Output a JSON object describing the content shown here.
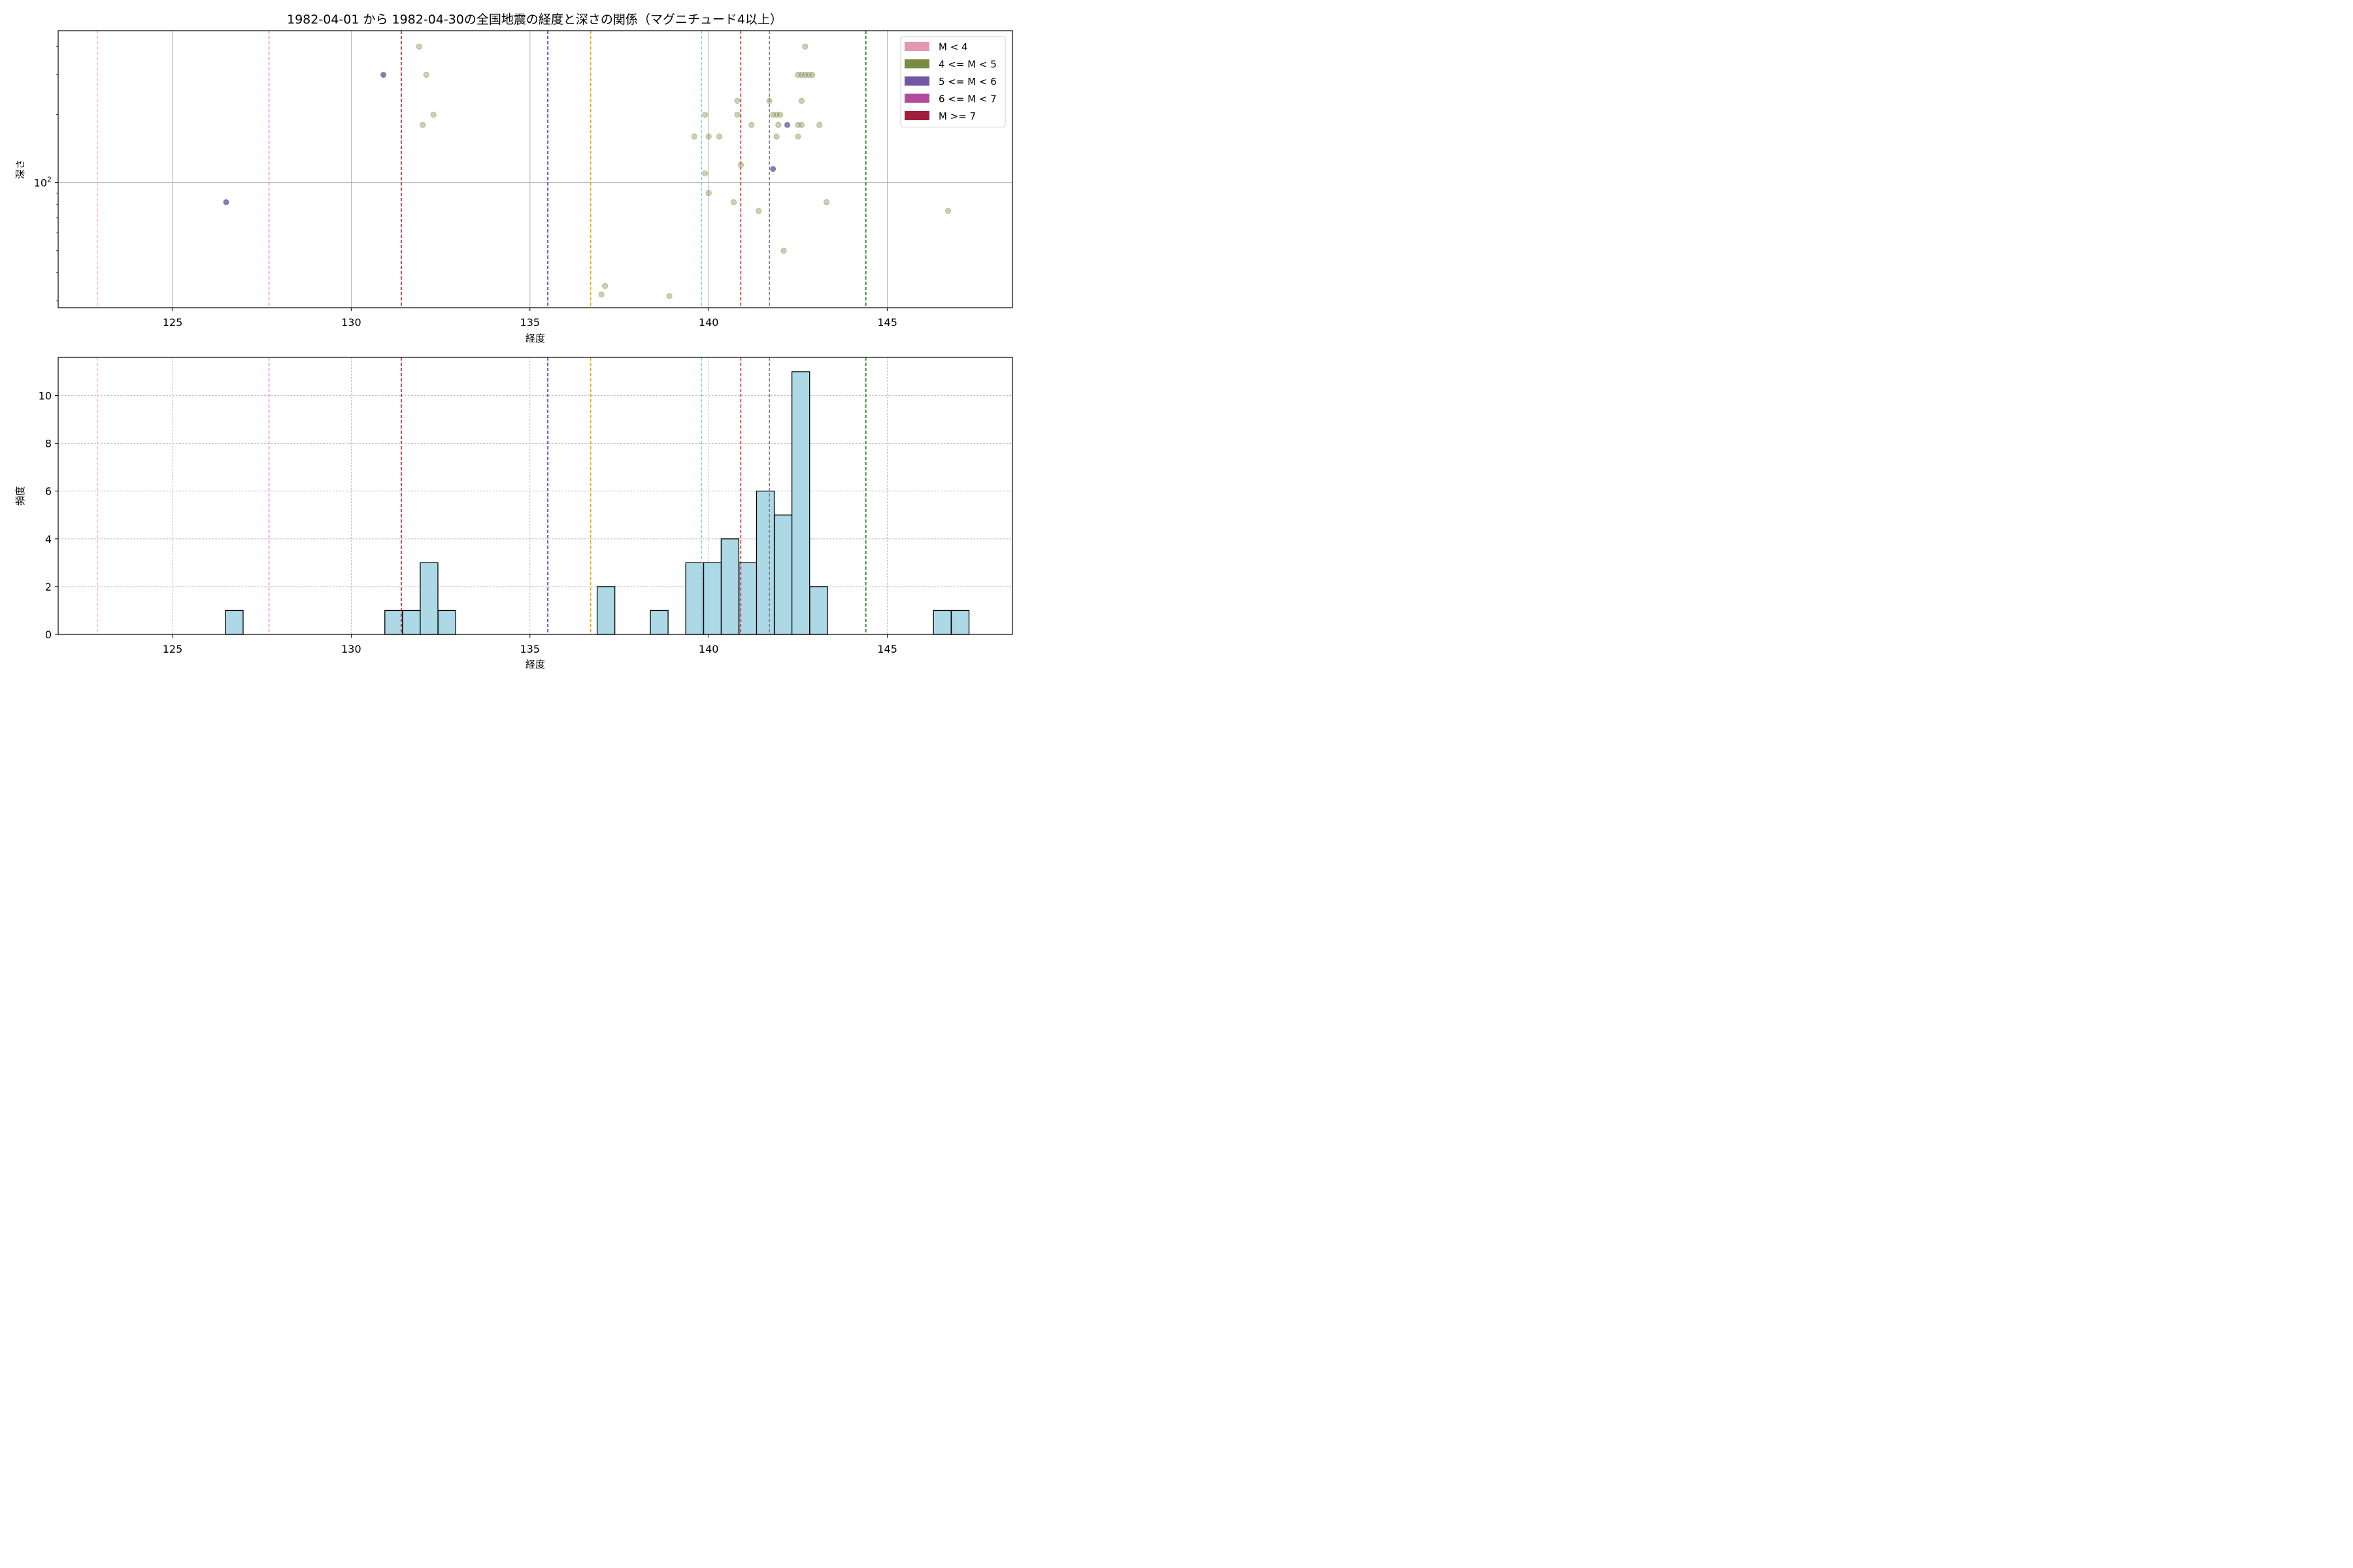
{
  "chart_data": [
    {
      "type": "scatter",
      "title": "1982-04-01 から 1982-04-30の全国地震の経度と深さの関係（マグニチュード4以上）",
      "xlabel": "経度",
      "ylabel": "深さ",
      "xlim": [
        121.8,
        148.5
      ],
      "ylim": [
        28,
        470
      ],
      "yscale": "log",
      "grid": true,
      "x_ticks": [
        125,
        130,
        135,
        140,
        145
      ],
      "y_tick_labels": [
        "10^2"
      ],
      "legend_position": "upper right",
      "legend": [
        {
          "label": "M < 4",
          "color": "#e497b1"
        },
        {
          "label": "4 <= M < 5",
          "color": "#7a8c42"
        },
        {
          "label": "5 <= M < 6",
          "color": "#7157a3"
        },
        {
          "label": "6 <= M < 7",
          "color": "#b24a9c"
        },
        {
          "label": "M >= 7",
          "color": "#a01e3e"
        }
      ],
      "vlines": [
        {
          "x": 122.9,
          "color": "#ffb6c1"
        },
        {
          "x": 127.7,
          "color": "#ee70dd"
        },
        {
          "x": 131.4,
          "color": "#a00000"
        },
        {
          "x": 135.5,
          "color": "#0000dd"
        },
        {
          "x": 136.7,
          "color": "#f0a000"
        },
        {
          "x": 139.8,
          "color": "#80d0e0"
        },
        {
          "x": 140.9,
          "color": "#ee0000"
        },
        {
          "x": 141.7,
          "color": "#707070"
        },
        {
          "x": 144.4,
          "color": "#007000"
        }
      ],
      "series": [
        {
          "name": "4 <= M < 5",
          "color": "#7a8c42",
          "points": [
            [
              131.9,
              400
            ],
            [
              132.1,
              300
            ],
            [
              132.3,
              200
            ],
            [
              132.0,
              180
            ],
            [
              137.0,
              32
            ],
            [
              137.1,
              35
            ],
            [
              138.9,
              31.5
            ],
            [
              139.6,
              160
            ],
            [
              139.9,
              200
            ],
            [
              140.0,
              160
            ],
            [
              139.9,
              110
            ],
            [
              140.0,
              90
            ],
            [
              140.3,
              160
            ],
            [
              140.7,
              82
            ],
            [
              140.8,
              200
            ],
            [
              140.9,
              120
            ],
            [
              140.8,
              230
            ],
            [
              141.2,
              180
            ],
            [
              141.4,
              75
            ],
            [
              141.7,
              230
            ],
            [
              141.8,
              200
            ],
            [
              141.9,
              200
            ],
            [
              141.95,
              180
            ],
            [
              141.9,
              160
            ],
            [
              142.0,
              200
            ],
            [
              142.1,
              50
            ],
            [
              142.5,
              300
            ],
            [
              142.6,
              300
            ],
            [
              142.7,
              300
            ],
            [
              142.8,
              300
            ],
            [
              142.9,
              300
            ],
            [
              142.5,
              180
            ],
            [
              142.6,
              180
            ],
            [
              142.5,
              160
            ],
            [
              142.6,
              230
            ],
            [
              142.7,
              400
            ],
            [
              143.1,
              180
            ],
            [
              143.3,
              82
            ],
            [
              146.7,
              75
            ]
          ]
        },
        {
          "name": "5 <= M < 6",
          "color": "#7157a3",
          "points": [
            [
              126.5,
              82
            ],
            [
              130.9,
              300
            ],
            [
              141.8,
              115
            ],
            [
              142.2,
              180
            ]
          ]
        }
      ]
    },
    {
      "type": "bar",
      "xlabel": "経度",
      "ylabel": "頻度",
      "xlim": [
        121.8,
        148.5
      ],
      "ylim": [
        0,
        11.6
      ],
      "x_ticks": [
        125,
        130,
        135,
        140,
        145
      ],
      "y_ticks": [
        0,
        2,
        4,
        6,
        8,
        10
      ],
      "grid": "dashed",
      "bar_color": "#add8e6",
      "bin_width": 0.495,
      "bins": [
        {
          "start": 126.48,
          "count": 1
        },
        {
          "start": 130.94,
          "count": 1
        },
        {
          "start": 131.44,
          "count": 1
        },
        {
          "start": 131.93,
          "count": 3
        },
        {
          "start": 132.43,
          "count": 1
        },
        {
          "start": 136.88,
          "count": 2
        },
        {
          "start": 138.37,
          "count": 1
        },
        {
          "start": 139.36,
          "count": 3
        },
        {
          "start": 139.86,
          "count": 3
        },
        {
          "start": 140.35,
          "count": 4
        },
        {
          "start": 140.85,
          "count": 3
        },
        {
          "start": 141.34,
          "count": 6
        },
        {
          "start": 141.84,
          "count": 5
        },
        {
          "start": 142.33,
          "count": 11
        },
        {
          "start": 142.83,
          "count": 2
        },
        {
          "start": 146.29,
          "count": 1
        },
        {
          "start": 146.79,
          "count": 1
        }
      ],
      "vlines": [
        {
          "x": 122.9,
          "color": "#ffb6c1"
        },
        {
          "x": 127.7,
          "color": "#ee70dd"
        },
        {
          "x": 131.4,
          "color": "#a00000"
        },
        {
          "x": 135.5,
          "color": "#0000dd"
        },
        {
          "x": 136.7,
          "color": "#f0a000"
        },
        {
          "x": 139.8,
          "color": "#80d0e0"
        },
        {
          "x": 140.9,
          "color": "#ee0000"
        },
        {
          "x": 141.7,
          "color": "#707070"
        },
        {
          "x": 144.4,
          "color": "#007000"
        }
      ]
    }
  ]
}
